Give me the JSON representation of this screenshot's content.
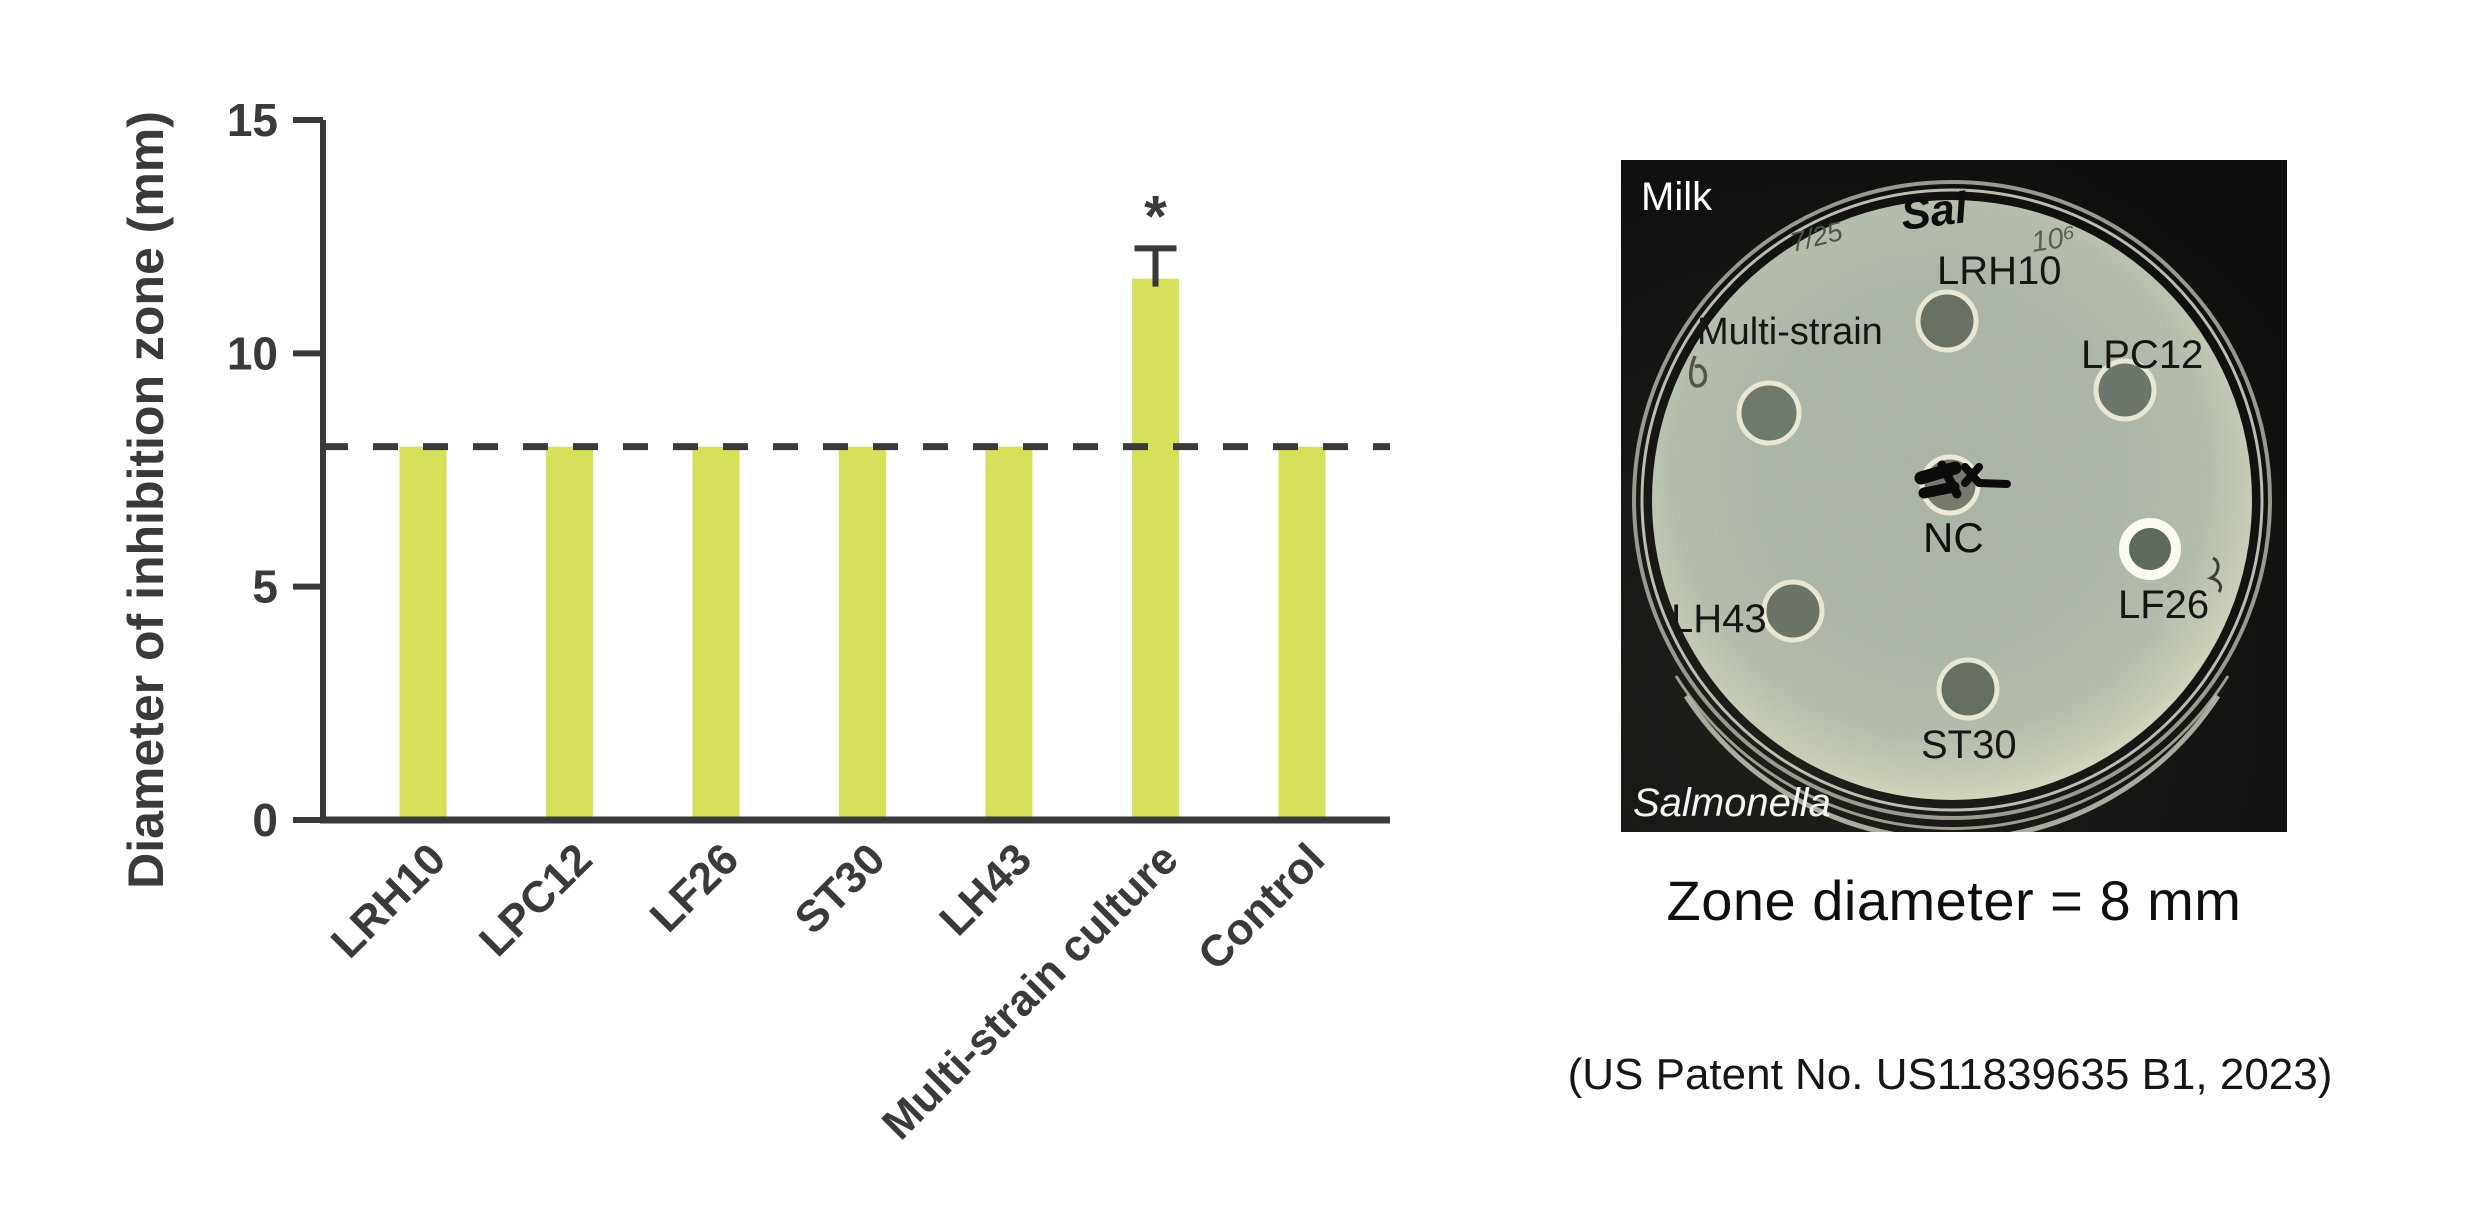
{
  "chart_data": {
    "type": "bar",
    "title": "",
    "xlabel": "",
    "ylabel": "Diameter of inhibition zone (mm)",
    "categories": [
      "LRH10",
      "LPC12",
      "LF26",
      "ST30",
      "LH43",
      "Multi-strain culture",
      "Control"
    ],
    "values": [
      8,
      8,
      8,
      8,
      8,
      11.6,
      8
    ],
    "errors": [
      0,
      0,
      0,
      0,
      0,
      0.65,
      0
    ],
    "significance": [
      "",
      "",
      "",
      "",
      "",
      "*",
      ""
    ],
    "reference_line_y": 8,
    "ylim": [
      0,
      15
    ],
    "yticks": [
      0,
      5,
      10,
      15
    ],
    "grid": false,
    "legend_position": "none",
    "bar_color": "#d7e05a",
    "axis_color": "#3a3a3a"
  },
  "photo": {
    "top_left_label": "Milk",
    "bottom_left_label": "Salmonella",
    "handwritten": {
      "plate_id": "Sal",
      "date": "7/25",
      "inoculum": "10⁶"
    },
    "well_labels": {
      "lrh10": "LRH10",
      "lpc12": "LPC12",
      "multi": "Multi-strain",
      "nc": "NC",
      "lf26": "LF26",
      "lh43": "LH43",
      "st30": "ST30"
    }
  },
  "captions": {
    "zone_diameter": "Zone diameter = 8 mm",
    "patent": "(US Patent No. US11839635 B1, 2023)"
  }
}
